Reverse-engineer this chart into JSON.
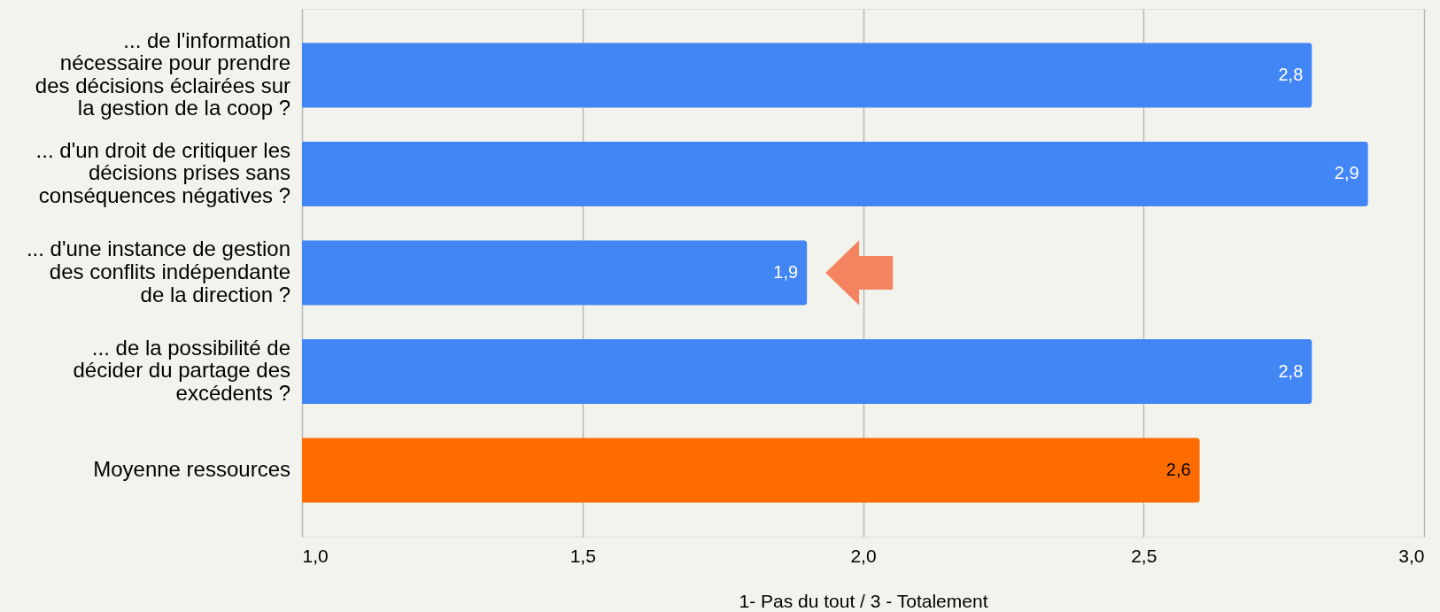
{
  "chart_data": {
    "type": "bar",
    "orientation": "horizontal",
    "categories": [
      "... de l'information nécessaire pour prendre des décisions éclairées sur la gestion de la coop ?",
      "... d'un droit de critiquer les décisions prises sans conséquences négatives ?",
      "... d'une instance de gestion des conflits indépendante de la direction ?",
      "... de la possibilité de décider du partage des excédents ?",
      "Moyenne ressources"
    ],
    "values": [
      2.8,
      2.9,
      1.9,
      2.8,
      2.6
    ],
    "colors": [
      "#4285f4",
      "#4285f4",
      "#4285f4",
      "#4285f4",
      "#ff6d01"
    ],
    "value_labels": [
      "2,8",
      "2,9",
      "1,9",
      "2,8",
      "2,6"
    ],
    "xlabel": "1- Pas du tout / 3 - Totalement",
    "xlim": [
      1,
      3
    ],
    "xticks": [
      {
        "value": 1,
        "label": "1,0"
      },
      {
        "value": 1.5,
        "label": "1,5"
      },
      {
        "value": 2,
        "label": "2,0"
      },
      {
        "value": 2.5,
        "label": "2,5"
      },
      {
        "value": 3,
        "label": "3,0"
      }
    ],
    "grid": "x"
  }
}
